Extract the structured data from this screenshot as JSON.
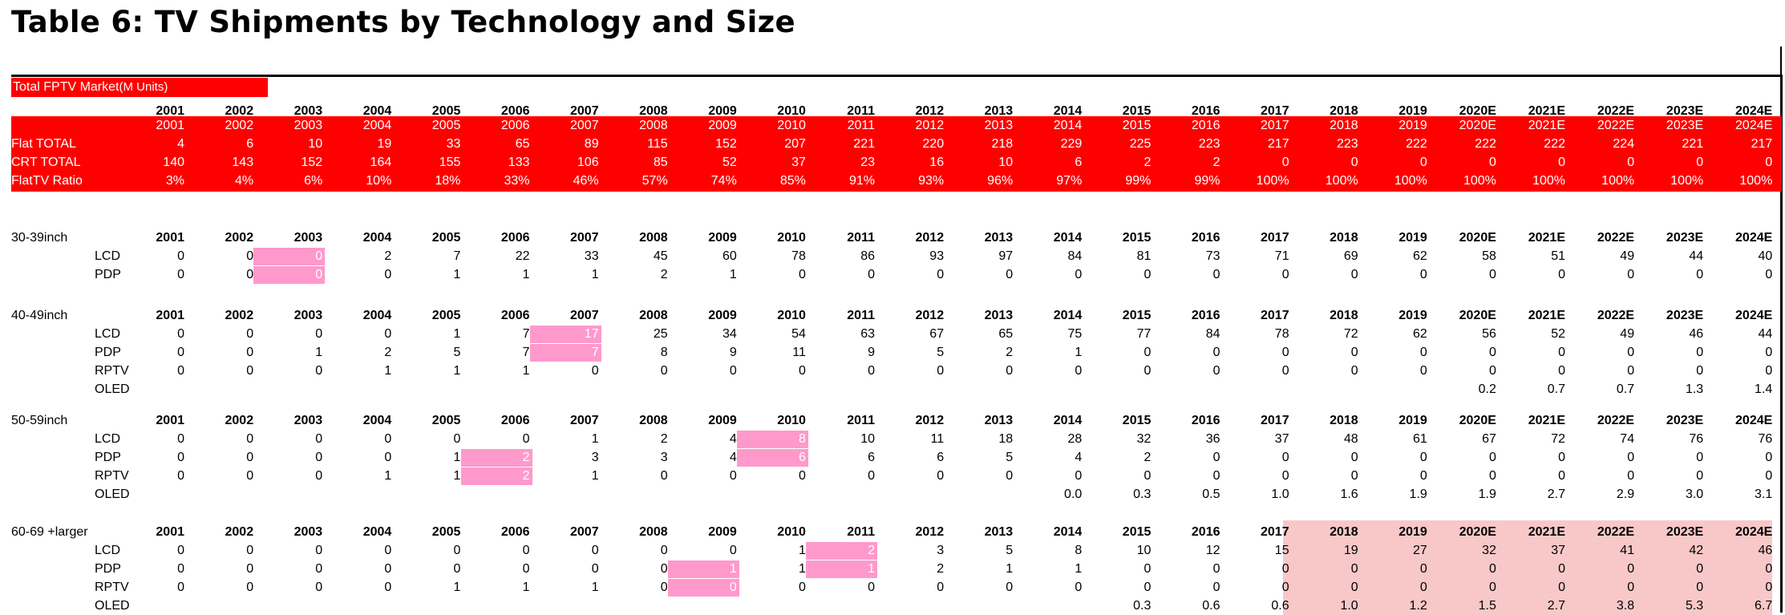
{
  "title": "Table 6: TV Shipments by Technology and Size",
  "market_label": "Total FPTV Market",
  "market_unit": "(M Units)",
  "years": [
    "2001",
    "2002",
    "2003",
    "2004",
    "2005",
    "2006",
    "2007",
    "2008",
    "2009",
    "2010",
    "2011",
    "2012",
    "2013",
    "2014",
    "2015",
    "2016",
    "2017",
    "2018",
    "2019",
    "2020E",
    "2021E",
    "2022E",
    "2023E",
    "2024E"
  ],
  "summary": [
    {
      "label": "Flat TOTAL",
      "values": [
        "4",
        "6",
        "10",
        "19",
        "33",
        "65",
        "89",
        "115",
        "152",
        "207",
        "221",
        "220",
        "218",
        "229",
        "225",
        "223",
        "217",
        "223",
        "222",
        "222",
        "222",
        "224",
        "221",
        "217"
      ]
    },
    {
      "label": "CRT TOTAL",
      "values": [
        "140",
        "143",
        "152",
        "164",
        "155",
        "133",
        "106",
        "85",
        "52",
        "37",
        "23",
        "16",
        "10",
        "6",
        "2",
        "2",
        "0",
        "0",
        "0",
        "0",
        "0",
        "0",
        "0",
        "0"
      ]
    },
    {
      "label": "FlatTV Ratio",
      "values": [
        "3%",
        "4%",
        "6%",
        "10%",
        "18%",
        "33%",
        "46%",
        "57%",
        "74%",
        "85%",
        "91%",
        "93%",
        "96%",
        "97%",
        "99%",
        "99%",
        "100%",
        "100%",
        "100%",
        "100%",
        "100%",
        "100%",
        "100%",
        "100%"
      ]
    }
  ],
  "sections": [
    {
      "label": "30-39inch",
      "rows": [
        {
          "label": "LCD",
          "values": [
            "0",
            "0",
            "0",
            "2",
            "7",
            "22",
            "33",
            "45",
            "60",
            "78",
            "86",
            "93",
            "97",
            "84",
            "81",
            "73",
            "71",
            "69",
            "62",
            "58",
            "51",
            "49",
            "44",
            "40"
          ]
        },
        {
          "label": "PDP",
          "values": [
            "0",
            "0",
            "0",
            "0",
            "1",
            "1",
            "1",
            "2",
            "1",
            "0",
            "0",
            "0",
            "0",
            "0",
            "0",
            "0",
            "0",
            "0",
            "0",
            "0",
            "0",
            "0",
            "0",
            "0"
          ]
        }
      ]
    },
    {
      "label": "40-49inch",
      "rows": [
        {
          "label": "LCD",
          "values": [
            "0",
            "0",
            "0",
            "0",
            "1",
            "7",
            "17",
            "25",
            "34",
            "54",
            "63",
            "67",
            "65",
            "75",
            "77",
            "84",
            "78",
            "72",
            "62",
            "56",
            "52",
            "49",
            "46",
            "44"
          ]
        },
        {
          "label": "PDP",
          "values": [
            "0",
            "0",
            "1",
            "2",
            "5",
            "7",
            "7",
            "8",
            "9",
            "11",
            "9",
            "5",
            "2",
            "1",
            "0",
            "0",
            "0",
            "0",
            "0",
            "0",
            "0",
            "0",
            "0",
            "0"
          ]
        },
        {
          "label": "RPTV",
          "values": [
            "0",
            "0",
            "0",
            "1",
            "1",
            "1",
            "0",
            "0",
            "0",
            "0",
            "0",
            "0",
            "0",
            "0",
            "0",
            "0",
            "0",
            "0",
            "0",
            "0",
            "0",
            "0",
            "0",
            "0"
          ]
        },
        {
          "label": "OLED",
          "values": [
            "",
            "",
            "",
            "",
            "",
            "",
            "",
            "",
            "",
            "",
            "",
            "",
            "",
            "",
            "",
            "",
            "",
            "",
            "",
            "0.2",
            "0.7",
            "0.7",
            "1.3",
            "1.4"
          ]
        }
      ]
    },
    {
      "label": "50-59inch",
      "rows": [
        {
          "label": "LCD",
          "values": [
            "0",
            "0",
            "0",
            "0",
            "0",
            "0",
            "1",
            "2",
            "4",
            "8",
            "10",
            "11",
            "18",
            "28",
            "32",
            "36",
            "37",
            "48",
            "61",
            "67",
            "72",
            "74",
            "76",
            "76"
          ]
        },
        {
          "label": "PDP",
          "values": [
            "0",
            "0",
            "0",
            "0",
            "1",
            "2",
            "3",
            "3",
            "4",
            "6",
            "6",
            "6",
            "5",
            "4",
            "2",
            "0",
            "0",
            "0",
            "0",
            "0",
            "0",
            "0",
            "0",
            "0"
          ]
        },
        {
          "label": "RPTV",
          "values": [
            "0",
            "0",
            "0",
            "1",
            "1",
            "2",
            "1",
            "0",
            "0",
            "0",
            "0",
            "0",
            "0",
            "0",
            "0",
            "0",
            "0",
            "0",
            "0",
            "0",
            "0",
            "0",
            "0",
            "0"
          ]
        },
        {
          "label": "OLED",
          "values": [
            "",
            "",
            "",
            "",
            "",
            "",
            "",
            "",
            "",
            "",
            "",
            "",
            "",
            "0.0",
            "0.3",
            "0.5",
            "1.0",
            "1.6",
            "1.9",
            "1.9",
            "2.7",
            "2.9",
            "3.0",
            "3.1"
          ]
        }
      ]
    },
    {
      "label": "60-69 +larger",
      "rows": [
        {
          "label": "LCD",
          "values": [
            "0",
            "0",
            "0",
            "0",
            "0",
            "0",
            "0",
            "0",
            "0",
            "1",
            "2",
            "3",
            "5",
            "8",
            "10",
            "12",
            "15",
            "19",
            "27",
            "32",
            "37",
            "41",
            "42",
            "46"
          ]
        },
        {
          "label": "PDP",
          "values": [
            "0",
            "0",
            "0",
            "0",
            "0",
            "0",
            "0",
            "0",
            "1",
            "1",
            "1",
            "2",
            "1",
            "1",
            "0",
            "0",
            "0",
            "0",
            "0",
            "0",
            "0",
            "0",
            "0",
            "0"
          ]
        },
        {
          "label": "RPTV",
          "values": [
            "0",
            "0",
            "0",
            "0",
            "1",
            "1",
            "1",
            "0",
            "0",
            "0",
            "0",
            "0",
            "0",
            "0",
            "0",
            "0",
            "0",
            "0",
            "0",
            "0",
            "0",
            "0",
            "0",
            "0"
          ]
        },
        {
          "label": "OLED",
          "values": [
            "",
            "",
            "",
            "",
            "",
            "",
            "",
            "",
            "",
            "",
            "",
            "",
            "",
            "",
            "0.3",
            "0.6",
            "0.6",
            "1.0",
            "1.2",
            "1.5",
            "2.7",
            "3.8",
            "5.3",
            "6.7"
          ]
        }
      ]
    }
  ],
  "highlight_color": "#ff99cc",
  "shade_color": "#f8c8c8",
  "header_bar_color": "#ff0000"
}
